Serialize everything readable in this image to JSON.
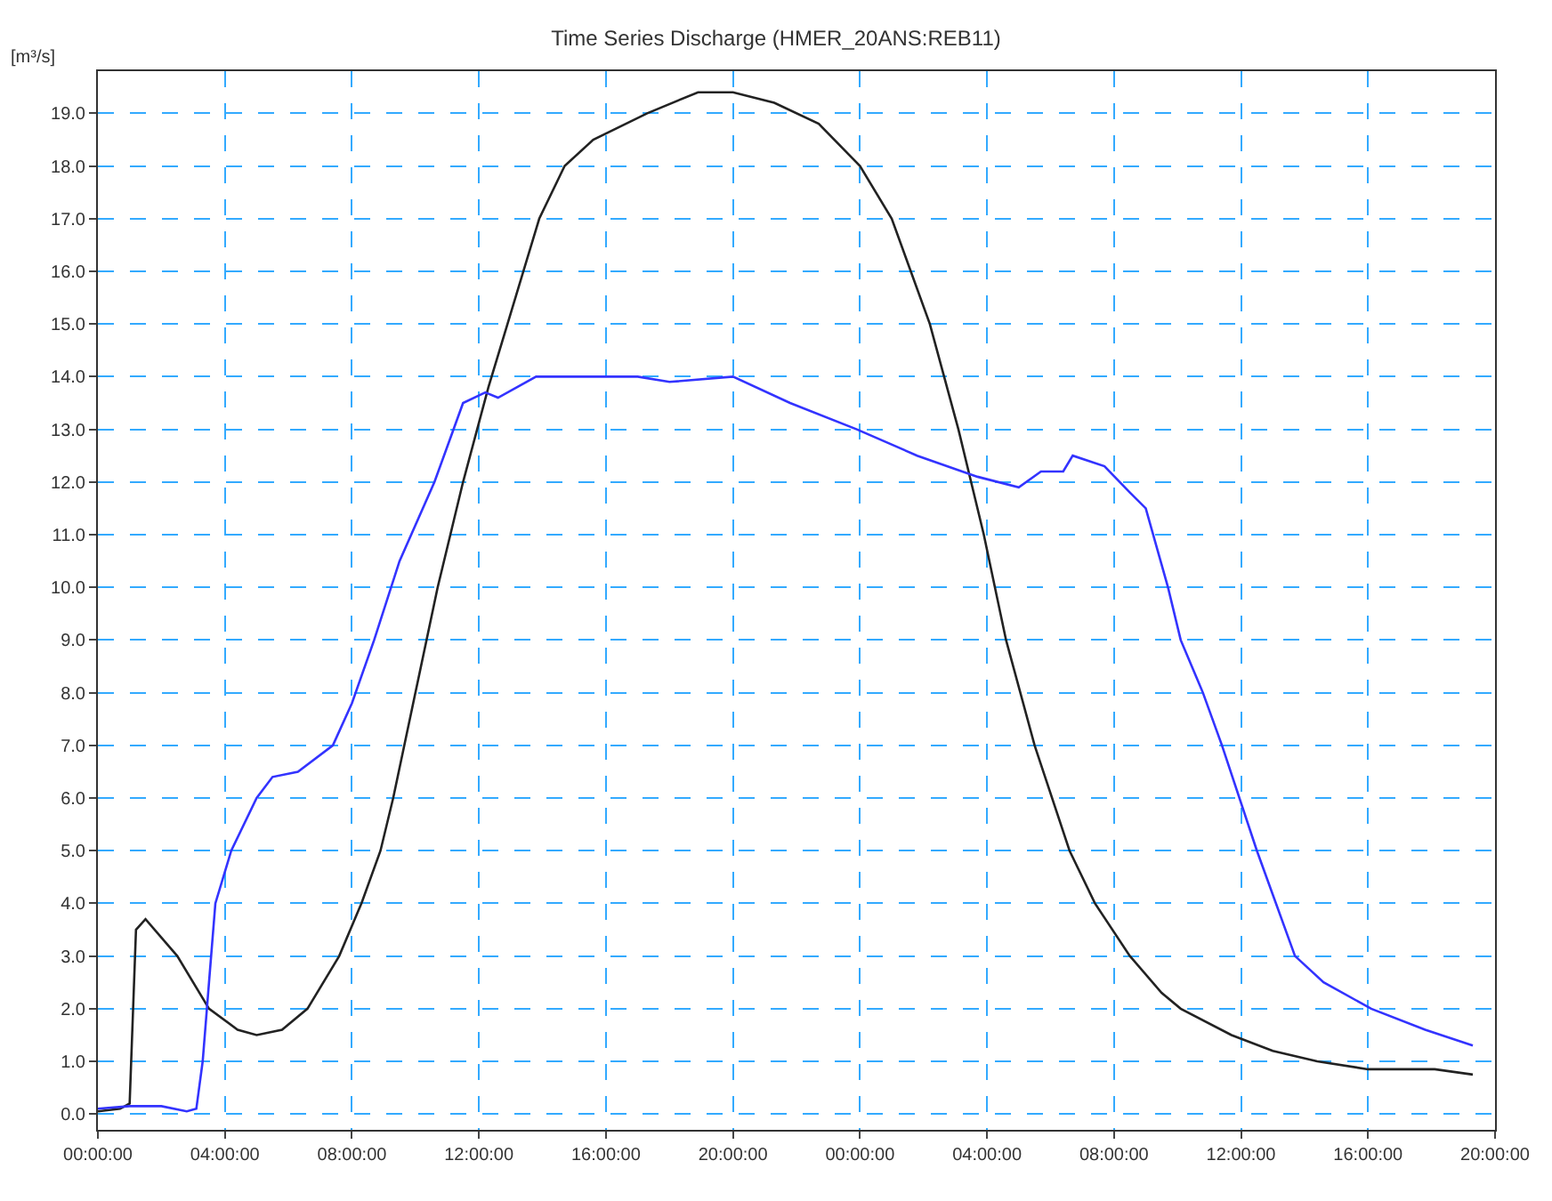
{
  "chart_data": {
    "type": "line",
    "title": "Time Series Discharge (HMER_20ANS:REB11)",
    "ylabel": "[m³/s]",
    "xlim": [
      "--01-01T00:00",
      "--01-02T20:00"
    ],
    "xticks": [
      {
        "value": "--01-01T00:00",
        "label": "00:00:00"
      },
      {
        "value": "--01-01T04:00",
        "label": "04:00:00"
      },
      {
        "value": "--01-01T08:00",
        "label": "08:00:00"
      },
      {
        "value": "--01-01T12:00",
        "label": "12:00:00"
      },
      {
        "value": "--01-01T16:00",
        "label": "16:00:00"
      },
      {
        "value": "--01-01T20:00",
        "label": "20:00:00"
      },
      {
        "value": "--01-02T00:00",
        "label": "00:00:00"
      },
      {
        "value": "--01-02T04:00",
        "label": "04:00:00"
      },
      {
        "value": "--01-02T08:00",
        "label": "08:00:00"
      },
      {
        "value": "--01-02T12:00",
        "label": "12:00:00"
      },
      {
        "value": "--01-02T16:00",
        "label": "16:00:00"
      },
      {
        "value": "--01-02T20:00",
        "label": "20:00:00"
      }
    ],
    "ylim": [
      -0.3,
      19.8
    ],
    "yticks": [
      {
        "value": 0,
        "label": "0.0"
      },
      {
        "value": 1,
        "label": "1.0"
      },
      {
        "value": 2,
        "label": "2.0"
      },
      {
        "value": 3,
        "label": "3.0"
      },
      {
        "value": 4,
        "label": "4.0"
      },
      {
        "value": 5,
        "label": "5.0"
      },
      {
        "value": 6,
        "label": "6.0"
      },
      {
        "value": 7,
        "label": "7.0"
      },
      {
        "value": 8,
        "label": "8.0"
      },
      {
        "value": 9,
        "label": "9.0"
      },
      {
        "value": 10,
        "label": "10.0"
      },
      {
        "value": 11,
        "label": "11.0"
      },
      {
        "value": 12,
        "label": "12.0"
      },
      {
        "value": 13,
        "label": "13.0"
      },
      {
        "value": 14,
        "label": "14.0"
      },
      {
        "value": 15,
        "label": "15.0"
      },
      {
        "value": 16,
        "label": "16.0"
      },
      {
        "value": 17,
        "label": "17.0"
      },
      {
        "value": 18,
        "label": "18.0"
      },
      {
        "value": 19,
        "label": "19.0"
      }
    ],
    "grid": true,
    "marker": "none",
    "line_style": "solid",
    "series": [
      {
        "color": "#222222",
        "x": [
          "--01-01T00:00",
          "--01-01T00:42",
          "--01-01T01:00",
          "--01-01T01:12",
          "--01-01T01:30",
          "--01-01T02:30",
          "--01-01T03:30",
          "--01-01T04:24",
          "--01-01T05:00",
          "--01-01T05:48",
          "--01-01T06:36",
          "--01-01T07:36",
          "--01-01T08:18",
          "--01-01T08:54",
          "--01-01T09:18",
          "--01-01T10:00",
          "--01-01T10:42",
          "--01-01T11:30",
          "--01-01T12:18",
          "--01-01T12:54",
          "--01-01T13:24",
          "--01-01T13:54",
          "--01-01T14:42",
          "--01-01T15:36",
          "--01-01T17:18",
          "--01-01T18:54",
          "--01-01T20:00",
          "--01-01T21:18",
          "--01-01T22:42",
          "--01-02T00:00",
          "--01-02T01:00",
          "--01-02T02:12",
          "--01-02T03:06",
          "--01-02T03:54",
          "--01-02T04:36",
          "--01-02T05:30",
          "--01-02T06:36",
          "--01-02T07:24",
          "--01-02T08:30",
          "--01-02T09:30",
          "--01-02T10:06",
          "--01-02T11:42",
          "--01-02T13:00",
          "--01-02T14:24",
          "--01-02T16:00",
          "--01-02T18:06",
          "--01-02T19:18"
        ],
        "values": [
          0.05,
          0.1,
          0.2,
          3.5,
          3.7,
          3.0,
          2.0,
          1.6,
          1.5,
          1.6,
          2.0,
          3.0,
          4.0,
          5.0,
          6.0,
          8.0,
          10.0,
          12.0,
          13.8,
          15.0,
          16.0,
          17.0,
          18.0,
          18.5,
          19.0,
          19.4,
          19.4,
          19.2,
          18.8,
          18.0,
          17.0,
          15.0,
          13.0,
          11.0,
          9.0,
          7.0,
          5.0,
          4.0,
          3.0,
          2.3,
          2.0,
          1.5,
          1.2,
          1.0,
          0.85,
          0.85,
          0.75
        ]
      },
      {
        "color": "#3333ff",
        "x": [
          "--01-01T00:00",
          "--01-01T01:00",
          "--01-01T02:00",
          "--01-01T02:48",
          "--01-01T03:06",
          "--01-01T03:18",
          "--01-01T03:30",
          "--01-01T03:42",
          "--01-01T04:12",
          "--01-01T05:00",
          "--01-01T05:30",
          "--01-01T06:18",
          "--01-01T07:24",
          "--01-01T08:00",
          "--01-01T08:42",
          "--01-01T09:30",
          "--01-01T10:36",
          "--01-01T11:30",
          "--01-01T12:12",
          "--01-01T12:36",
          "--01-01T13:48",
          "--01-01T17:00",
          "--01-01T18:00",
          "--01-01T20:00",
          "--01-01T21:48",
          "--01-01T23:54",
          "--01-02T01:48",
          "--01-02T03:42",
          "--01-02T05:00",
          "--01-02T05:42",
          "--01-02T06:24",
          "--01-02T06:42",
          "--01-02T07:42",
          "--01-02T08:30",
          "--01-02T09:00",
          "--01-02T09:42",
          "--01-02T10:06",
          "--01-02T10:48",
          "--01-02T11:24",
          "--01-02T12:30",
          "--01-02T13:42",
          "--01-02T14:36",
          "--01-02T16:06",
          "--01-02T17:48",
          "--01-02T19:18"
        ],
        "values": [
          0.1,
          0.15,
          0.15,
          0.05,
          0.1,
          1.0,
          2.5,
          4.0,
          5.0,
          6.0,
          6.4,
          6.5,
          7.0,
          7.8,
          9.0,
          10.5,
          12.0,
          13.5,
          13.7,
          13.6,
          14.0,
          14.0,
          13.9,
          14.0,
          13.5,
          13.0,
          12.5,
          12.1,
          11.9,
          12.2,
          12.2,
          12.5,
          12.3,
          11.8,
          11.5,
          10.0,
          9.0,
          8.0,
          7.0,
          5.0,
          3.0,
          2.5,
          2.0,
          1.6,
          1.3
        ]
      }
    ]
  }
}
